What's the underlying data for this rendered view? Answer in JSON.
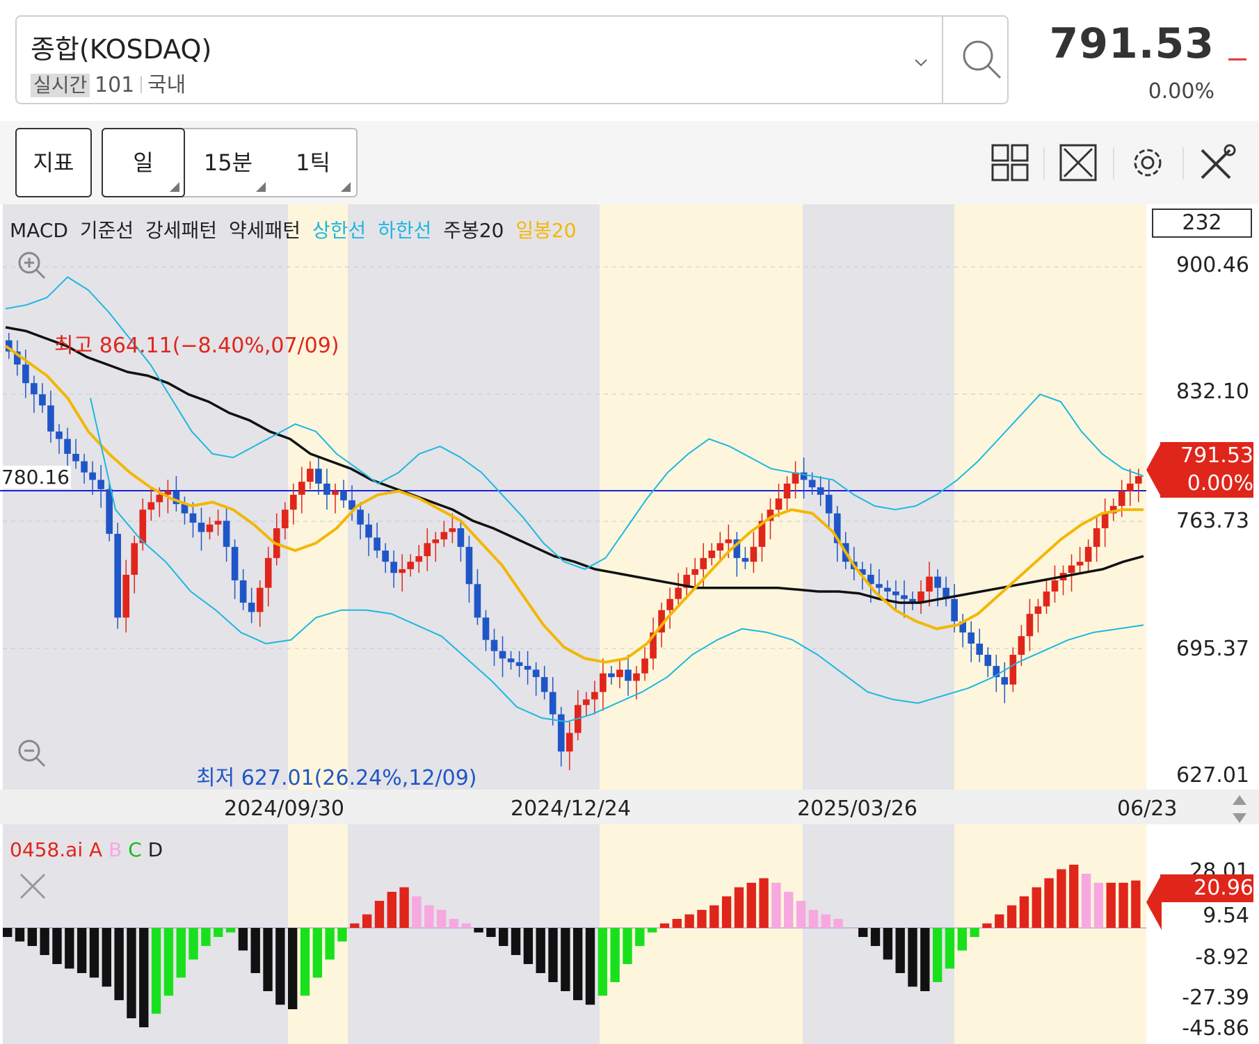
{
  "header": {
    "index_name": "종합(KOSDAQ)",
    "badge": "실시간",
    "code": "101",
    "market": "국내",
    "price": "791.53",
    "change_pct": "0.00%",
    "search_icon": "search-icon",
    "dropdown_icon": "chevron-down-icon"
  },
  "toolbar": {
    "indicator_label": "지표",
    "tabs": [
      {
        "label": "일",
        "active": true
      },
      {
        "label": "15분",
        "active": false
      },
      {
        "label": "1틱",
        "active": false
      }
    ],
    "icons": [
      "layout-grid-icon",
      "fullscreen-icon",
      "gear-icon",
      "tools-icon"
    ]
  },
  "colors": {
    "up": "#e0251b",
    "down": "#1f56c7",
    "bollinger": "#1cb8e0",
    "ma_daily": "#f2b705",
    "ma_weekly": "#111111",
    "ref_line": "#1a1fd6",
    "band_gray": "#e4e3e8",
    "band_yellow": "#fdf6dc",
    "osc_red": "#e0251b",
    "osc_pink": "#f7a8e0",
    "osc_green": "#19e01c",
    "osc_black": "#111111"
  },
  "main_chart": {
    "legend": [
      {
        "text": "MACD",
        "color": "black"
      },
      {
        "text": "기준선",
        "color": "black"
      },
      {
        "text": "강세패턴",
        "color": "black"
      },
      {
        "text": "약세패턴",
        "color": "black"
      },
      {
        "text": "상한선",
        "color": "cyan"
      },
      {
        "text": "하한선",
        "color": "cyan"
      },
      {
        "text": "주봉20",
        "color": "black"
      },
      {
        "text": "일봉20",
        "color": "gold"
      }
    ],
    "visible_count": "232",
    "y_axis": [
      "900.46",
      "832.10",
      "763.73",
      "695.37",
      "627.01"
    ],
    "current_price": "791.53",
    "current_change": "0.00%",
    "ref_level": "780.16",
    "high_annotation": "최고 864.11(−8.40%,07/09)",
    "low_annotation": "최저 627.01(26.24%,12/09)",
    "x_axis": [
      "2024/09/30",
      "2024/12/24",
      "2025/03/26",
      "06/23"
    ]
  },
  "indicator": {
    "legend": [
      {
        "text": "0458.ai",
        "color": "red"
      },
      {
        "text": "A",
        "color": "red"
      },
      {
        "text": "B",
        "color": "pink"
      },
      {
        "text": "C",
        "color": "green"
      },
      {
        "text": "D",
        "color": "black"
      }
    ],
    "y_axis": [
      "28.01",
      "9.54",
      "-8.92",
      "-27.39",
      "-45.86"
    ],
    "current_value": "20.96"
  },
  "chart_data": [
    {
      "type": "candlestick",
      "title": "",
      "ylim": [
        627.01,
        900.46
      ],
      "x_ticks": [
        "2024/09/30",
        "2024/12/24",
        "2025/03/26",
        "06/23"
      ],
      "reference_lines": [
        {
          "label": "780.16",
          "value": 780.16
        }
      ],
      "close_approx": [
        855,
        848,
        838,
        832,
        826,
        812,
        808,
        800,
        796,
        790,
        786,
        781,
        757,
        712,
        735,
        752,
        770,
        774,
        778,
        780,
        773,
        768,
        763,
        758,
        762,
        764,
        750,
        732,
        720,
        715,
        728,
        744,
        760,
        770,
        778,
        785,
        792,
        784,
        778,
        780,
        775,
        770,
        762,
        755,
        748,
        742,
        736,
        738,
        742,
        745,
        752,
        754,
        758,
        760,
        750,
        730,
        712,
        700,
        694,
        690,
        688,
        686,
        684,
        680,
        672,
        660,
        640,
        650,
        665,
        668,
        672,
        682,
        680,
        684,
        678,
        682,
        690,
        704,
        716,
        722,
        728,
        735,
        738,
        744,
        748,
        752,
        754,
        744,
        742,
        750,
        764,
        770,
        776,
        784,
        790,
        786,
        782,
        778,
        768,
        752,
        742,
        738,
        735,
        730,
        728,
        726,
        724,
        722,
        720,
        726,
        734,
        728,
        722,
        710,
        704,
        698,
        692,
        686,
        680,
        676,
        692,
        702,
        714,
        718,
        726,
        732,
        736,
        740,
        742,
        750,
        760,
        768,
        772,
        780,
        784,
        788
      ],
      "series": [
        {
          "name": "주봉20",
          "values_approx": [
            868,
            866,
            862,
            858,
            852,
            848,
            844,
            842,
            838,
            832,
            828,
            822,
            818,
            812,
            808,
            800,
            796,
            792,
            786,
            782,
            778,
            774,
            770,
            764,
            760,
            755,
            750,
            745,
            742,
            738,
            736,
            734,
            732,
            730,
            728,
            728,
            728,
            728,
            728,
            727,
            726,
            726,
            725,
            722,
            720,
            720,
            722,
            724,
            726,
            728,
            730,
            732,
            734,
            736,
            738,
            742,
            745
          ]
        },
        {
          "name": "일봉20",
          "values_approx": [
            858,
            850,
            842,
            830,
            812,
            800,
            790,
            782,
            776,
            772,
            774,
            770,
            762,
            752,
            748,
            752,
            760,
            772,
            778,
            780,
            776,
            770,
            764,
            752,
            740,
            724,
            708,
            696,
            690,
            688,
            690,
            698,
            712,
            724,
            736,
            748,
            758,
            766,
            770,
            768,
            758,
            740,
            726,
            716,
            710,
            706,
            708,
            714,
            724,
            734,
            744,
            754,
            762,
            768,
            770,
            770
          ]
        },
        {
          "name": "상한선",
          "values_approx": [
            878,
            880,
            884,
            895,
            888,
            876,
            862,
            848,
            830,
            812,
            800,
            798,
            804,
            810,
            816,
            812,
            800,
            792,
            784,
            790,
            800,
            804,
            798,
            790,
            778,
            766,
            752,
            742,
            738,
            744,
            760,
            776,
            790,
            800,
            808,
            804,
            798,
            792,
            790,
            788,
            786,
            778,
            772,
            770,
            772,
            778,
            786,
            796,
            808,
            820,
            832,
            828,
            812,
            800,
            792,
            788
          ]
        },
        {
          "name": "하한선",
          "values_approx": [
            830,
            770,
            754,
            742,
            726,
            716,
            704,
            698,
            700,
            712,
            716,
            716,
            714,
            708,
            702,
            690,
            678,
            664,
            658,
            656,
            660,
            666,
            672,
            680,
            692,
            700,
            706,
            704,
            700,
            692,
            682,
            672,
            668,
            666,
            670,
            674,
            680,
            688,
            694,
            700,
            704,
            706,
            708
          ]
        }
      ]
    },
    {
      "type": "bar",
      "title": "",
      "ylim": [
        -45.86,
        28.01
      ],
      "y_ticks": [
        28.01,
        9.54,
        -8.92,
        -27.39,
        -45.86
      ],
      "last_value": 20.96,
      "values_approx": [
        -4,
        -6,
        -8,
        -12,
        -16,
        -18,
        -20,
        -22,
        -26,
        -32,
        -40,
        -44,
        -38,
        -30,
        -22,
        -14,
        -8,
        -4,
        -2,
        -10,
        -20,
        -28,
        -34,
        -36,
        -30,
        -22,
        -14,
        -6,
        2,
        6,
        12,
        16,
        18,
        14,
        10,
        8,
        4,
        2,
        -2,
        -4,
        -8,
        -12,
        -16,
        -20,
        -24,
        -28,
        -32,
        -34,
        -30,
        -24,
        -16,
        -8,
        -2,
        2,
        4,
        6,
        8,
        10,
        14,
        18,
        20,
        22,
        20,
        16,
        12,
        8,
        6,
        4,
        0,
        -4,
        -8,
        -14,
        -20,
        -26,
        -28,
        -24,
        -18,
        -10,
        -4,
        2,
        6,
        10,
        14,
        18,
        22,
        26,
        28,
        24,
        20,
        20,
        20,
        21
      ]
    }
  ]
}
